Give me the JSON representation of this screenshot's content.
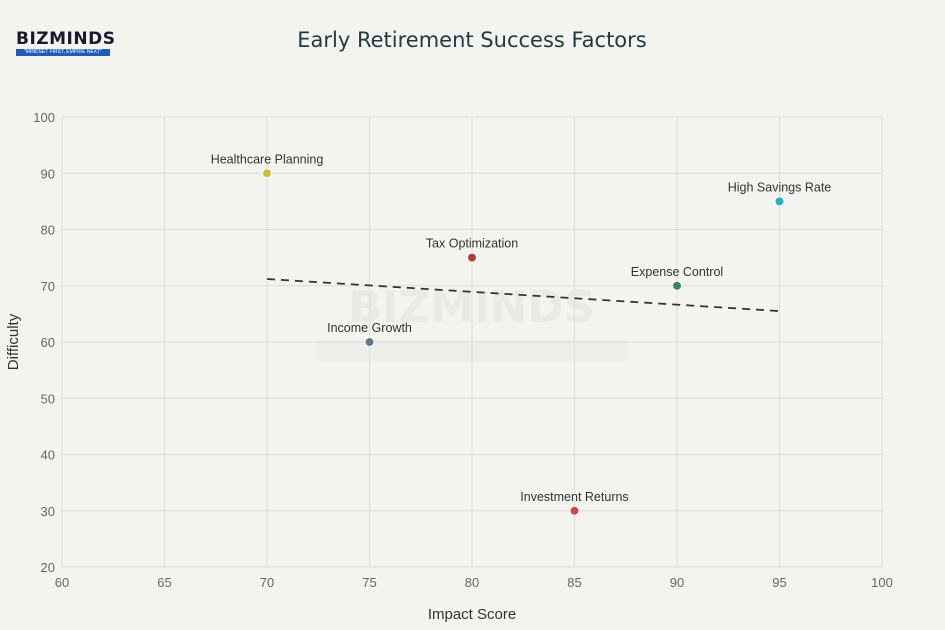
{
  "logo": {
    "name": "BIZMINDS",
    "tagline": "\"MINDSET FIRST, EMPIRE NEXT\""
  },
  "chart_data": {
    "type": "scatter",
    "title": "Early Retirement Success Factors",
    "xlabel": "Impact Score",
    "ylabel": "Difficulty",
    "xlim": [
      60,
      100
    ],
    "ylim": [
      20,
      100
    ],
    "xticks": [
      60,
      65,
      70,
      75,
      80,
      85,
      90,
      95,
      100
    ],
    "yticks": [
      20,
      30,
      40,
      50,
      60,
      70,
      80,
      90,
      100
    ],
    "grid": true,
    "points": [
      {
        "label": "Healthcare Planning",
        "x": 70,
        "y": 90,
        "color": "#d4b93c"
      },
      {
        "label": "Income Growth",
        "x": 75,
        "y": 60,
        "color": "#5f7d8f"
      },
      {
        "label": "Tax Optimization",
        "x": 80,
        "y": 75,
        "color": "#b33c36"
      },
      {
        "label": "Investment Returns",
        "x": 85,
        "y": 30,
        "color": "#d64545"
      },
      {
        "label": "Expense Control",
        "x": 90,
        "y": 70,
        "color": "#2e8b6a"
      },
      {
        "label": "High Savings Rate",
        "x": 95,
        "y": 85,
        "color": "#1fb3c9"
      }
    ],
    "trendline": {
      "style": "dashed",
      "x": [
        70,
        95
      ],
      "y": [
        71.2,
        65.5
      ]
    }
  }
}
